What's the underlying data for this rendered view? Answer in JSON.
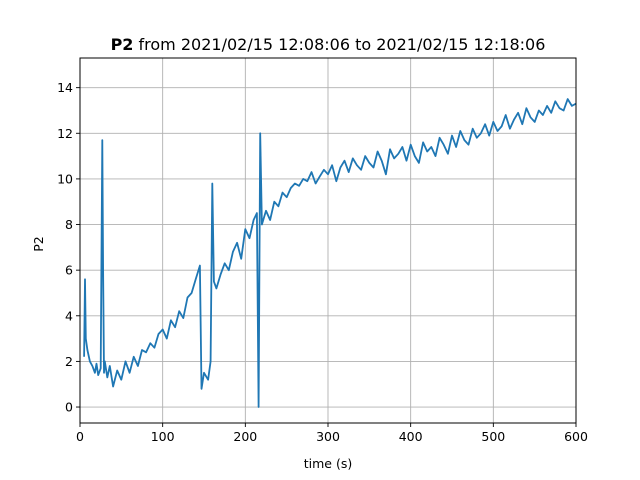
{
  "chart_data": {
    "type": "line",
    "title_bold": "P2",
    "title_rest": " from 2021/02/15 12:08:06 to 2021/02/15 12:18:06",
    "xlabel": "time (s)",
    "ylabel": "P2",
    "xlim": [
      0,
      600
    ],
    "ylim": [
      -0.7,
      15.3
    ],
    "x_ticks": [
      0,
      100,
      200,
      300,
      400,
      500,
      600
    ],
    "y_ticks": [
      0,
      2,
      4,
      6,
      8,
      10,
      12,
      14
    ],
    "grid": true,
    "line_color": "#1f77b4",
    "series": [
      {
        "x": [
          5,
          6,
          7,
          9,
          12,
          15,
          18,
          20,
          22,
          25,
          27,
          28,
          29,
          30,
          33,
          36,
          40,
          45,
          50,
          55,
          60,
          65,
          70,
          75,
          80,
          85,
          90,
          95,
          100,
          105,
          110,
          115,
          120,
          125,
          130,
          135,
          140,
          145,
          147,
          150,
          155,
          158,
          160,
          162,
          165,
          170,
          175,
          180,
          185,
          190,
          195,
          200,
          205,
          210,
          214,
          216,
          218,
          220,
          225,
          230,
          235,
          240,
          245,
          250,
          255,
          260,
          265,
          270,
          275,
          280,
          285,
          290,
          295,
          300,
          305,
          310,
          315,
          320,
          325,
          330,
          335,
          340,
          345,
          350,
          355,
          360,
          365,
          370,
          375,
          380,
          385,
          390,
          395,
          400,
          405,
          410,
          415,
          420,
          425,
          430,
          435,
          440,
          445,
          450,
          455,
          460,
          465,
          470,
          475,
          480,
          485,
          490,
          495,
          500,
          505,
          510,
          515,
          520,
          525,
          530,
          535,
          540,
          545,
          550,
          555,
          560,
          565,
          570,
          575,
          580,
          585,
          590,
          595,
          600
        ],
        "y": [
          2.2,
          5.6,
          3.0,
          2.5,
          2.0,
          1.8,
          1.5,
          1.9,
          1.4,
          1.7,
          11.7,
          6.0,
          1.5,
          2.0,
          1.3,
          1.8,
          0.9,
          1.6,
          1.2,
          2.0,
          1.5,
          2.2,
          1.8,
          2.5,
          2.4,
          2.8,
          2.6,
          3.2,
          3.4,
          3.0,
          3.8,
          3.5,
          4.2,
          3.9,
          4.8,
          5.0,
          5.6,
          6.2,
          0.8,
          1.5,
          1.2,
          2.0,
          9.8,
          5.5,
          5.2,
          5.8,
          6.3,
          6.0,
          6.8,
          7.2,
          6.5,
          7.8,
          7.4,
          8.2,
          8.5,
          0.0,
          12.0,
          8.0,
          8.6,
          8.2,
          9.0,
          8.8,
          9.4,
          9.2,
          9.6,
          9.8,
          9.7,
          10.0,
          9.9,
          10.3,
          9.8,
          10.1,
          10.4,
          10.2,
          10.6,
          9.9,
          10.5,
          10.8,
          10.3,
          10.9,
          10.6,
          10.4,
          11.0,
          10.7,
          10.5,
          11.2,
          10.8,
          10.2,
          11.3,
          10.9,
          11.1,
          11.4,
          10.8,
          11.5,
          11.0,
          10.7,
          11.6,
          11.2,
          11.4,
          11.0,
          11.8,
          11.5,
          11.1,
          11.9,
          11.4,
          12.1,
          11.7,
          11.5,
          12.2,
          11.8,
          12.0,
          12.4,
          11.9,
          12.5,
          12.1,
          12.3,
          12.8,
          12.2,
          12.6,
          12.9,
          12.4,
          13.1,
          12.7,
          12.5,
          13.0,
          12.8,
          13.2,
          12.9,
          13.4,
          13.1,
          13.0,
          13.5,
          13.2,
          13.3
        ]
      }
    ]
  }
}
